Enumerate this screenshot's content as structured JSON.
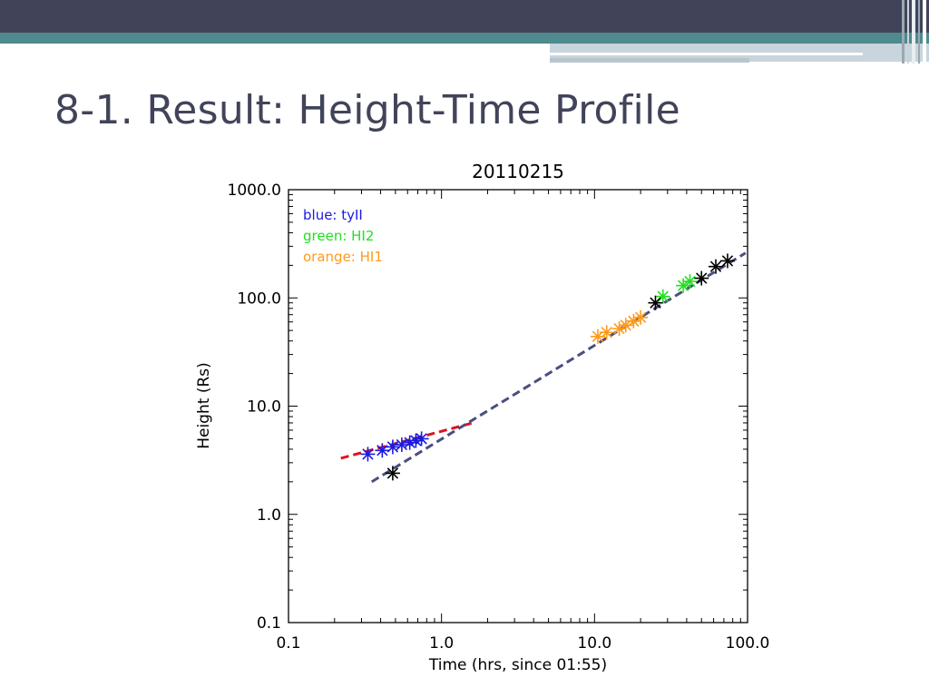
{
  "slide": {
    "title": "8-1. Result: Height-Time Profile",
    "colors": {
      "top_bar": "#414459",
      "teal_band": "#4e8a8e",
      "grey_band": "#c9d5dc",
      "title_text": "#414459"
    }
  },
  "chart_data": {
    "type": "scatter",
    "title": "20110215",
    "xlabel": "Time (hrs, since 01:55)",
    "ylabel": "Height  (Rs)",
    "xscale": "log",
    "yscale": "log",
    "xlim": [
      0.1,
      100.0
    ],
    "ylim": [
      0.1,
      1000.0
    ],
    "xticks": [
      0.1,
      1.0,
      10.0,
      100.0
    ],
    "xtick_labels": [
      "0.1",
      "1.0",
      "10.0",
      "100.0"
    ],
    "yticks": [
      0.1,
      1.0,
      10.0,
      100.0,
      1000.0
    ],
    "ytick_labels": [
      "0.1",
      "1.0",
      "10.0",
      "100.0",
      "1000.0"
    ],
    "grid": false,
    "legend_position": "top-left",
    "legend": [
      {
        "text": "blue:  tyII",
        "color": "#1a1adf"
      },
      {
        "text": "green:  HI2",
        "color": "#22e022"
      },
      {
        "text": "orange:  HI1",
        "color": "#ff9a1a"
      }
    ],
    "series": [
      {
        "color": "#1a1adf",
        "marker": "asterisk",
        "x": [
          0.33,
          0.41,
          0.48,
          0.55,
          0.62,
          0.68,
          0.74
        ],
        "y": [
          3.6,
          3.9,
          4.2,
          4.4,
          4.6,
          4.8,
          5.0
        ]
      },
      {
        "color": "#ff9a1a",
        "marker": "asterisk",
        "x": [
          10.5,
          12.0,
          14.5,
          16.0,
          18.0,
          20.0
        ],
        "y": [
          44,
          48,
          52,
          56,
          61,
          66
        ]
      },
      {
        "color": "#22e022",
        "marker": "asterisk",
        "x": [
          28.0,
          38.0,
          42.0
        ],
        "y": [
          103,
          130,
          142
        ]
      },
      {
        "color": "#000000",
        "marker": "asterisk",
        "x": [
          0.48,
          25.0,
          50.0,
          62.0,
          74.0
        ],
        "y": [
          2.4,
          90,
          152,
          195,
          220
        ]
      }
    ],
    "fit_lines": [
      {
        "color": "#dd1122",
        "style": "dashed",
        "x": [
          0.22,
          1.6
        ],
        "y": [
          3.3,
          7.0
        ]
      },
      {
        "color": "#4a4e80",
        "style": "dashed",
        "x": [
          0.35,
          97.0
        ],
        "y": [
          2.0,
          260.0
        ]
      }
    ]
  }
}
